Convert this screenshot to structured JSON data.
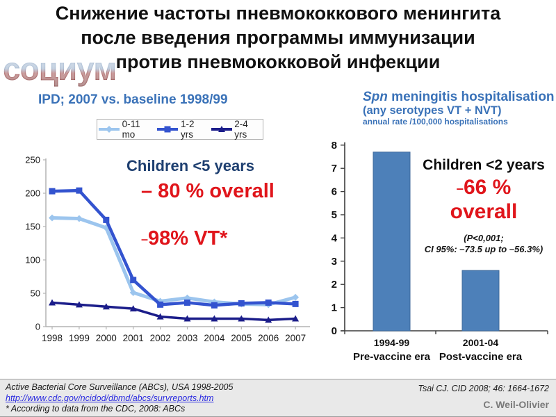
{
  "title": {
    "line1": "Снижение частоты пневмококкового менингита",
    "line2": "после введения программы иммунизации",
    "line3": "против пневмококковой инфекции"
  },
  "watermark": "социум",
  "left_panel": {
    "header": "IPD; 2007 vs. baseline 1998/99",
    "annotations": {
      "children": "Children <5 years",
      "overall": "– 80 %  overall",
      "vt_dash": "–",
      "vt": "98% VT*"
    }
  },
  "right_panel": {
    "header": {
      "spn": "Spn",
      "line1_rest": " meningitis hospitalisation",
      "line2": "(any serotypes VT + NVT)",
      "line3": "annual rate /100,000 hospitalisations"
    },
    "annotations": {
      "children": "Children <2 years",
      "pct_dash": "–",
      "pct": "66 %",
      "overall": "overall",
      "pvalue_line1": "(P<0,001;",
      "pvalue_line2": "CI 95%: –73.5 up to –56.3%)"
    }
  },
  "chart_data": [
    {
      "type": "line",
      "title": "IPD; 2007 vs. baseline 1998/99",
      "x": [
        1998,
        1999,
        2000,
        2001,
        2002,
        2003,
        2004,
        2005,
        2006,
        2007
      ],
      "ylim": [
        0,
        250
      ],
      "yticks": [
        0,
        50,
        100,
        150,
        200,
        250
      ],
      "grid": false,
      "legend_position": "top",
      "series": [
        {
          "name": "0-11 mo",
          "color": "#9cc5ee",
          "marker": "diamond",
          "values": [
            163,
            162,
            148,
            51,
            38,
            43,
            37,
            34,
            33,
            44
          ]
        },
        {
          "name": "1-2 yrs",
          "color": "#3353cf",
          "marker": "square",
          "values": [
            203,
            204,
            160,
            70,
            33,
            36,
            32,
            35,
            36,
            34
          ]
        },
        {
          "name": "2-4 yrs",
          "color": "#1b1d8a",
          "marker": "triangle",
          "values": [
            36,
            33,
            30,
            27,
            15,
            12,
            12,
            12,
            10,
            12
          ]
        }
      ]
    },
    {
      "type": "bar",
      "title": "Spn meningitis hospitalisation (any serotypes VT + NVT)",
      "ylabel": "annual rate /100,000 hospitalisations",
      "categories": [
        "1994-99",
        "2001-04"
      ],
      "category_sublabels": [
        "Pre-vaccine era",
        "Post-vaccine era"
      ],
      "values": [
        7.7,
        2.6
      ],
      "ylim": [
        0,
        8
      ],
      "yticks": [
        0,
        1,
        2,
        3,
        4,
        5,
        6,
        7,
        8
      ],
      "bar_color": "#4d80b9",
      "grid": false
    }
  ],
  "footer": {
    "source_line1": "Active Bacterial Core Surveillance (ABCs), USA 1998-2005",
    "source_link": "http://www.cdc.gov/ncidod/dbmd/abcs/survreports.htm",
    "source_line3": "* According to data from the CDC, 2008: ABCs",
    "citation": "Tsai CJ. CID 2008; 46: 1664-1672",
    "author": "C. Weil-Olivier"
  },
  "colors": {
    "header_blue": "#3a72b8",
    "dark_blue_text": "#1e3f70",
    "red_text": "#e0151b",
    "bar_fill": "#4d80b9",
    "axis_gray": "#b3b3b3"
  }
}
